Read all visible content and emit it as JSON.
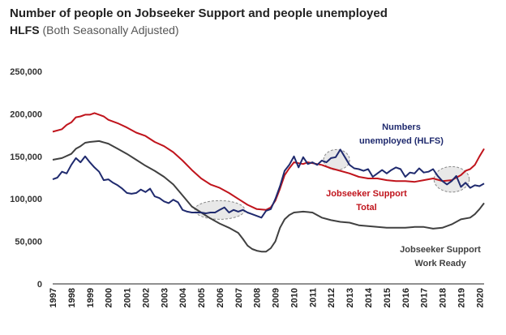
{
  "chart_data": {
    "type": "line",
    "title": "Number of people on Jobseeker Support and people unemployed",
    "subtitle_bold": "HLFS",
    "subtitle_rest": "(Both Seasonally Adjusted)",
    "xlabel": "",
    "ylabel": "",
    "ylim": [
      0,
      250000
    ],
    "xlim": [
      1997,
      2020.25
    ],
    "yticks": [
      "250,000",
      "200,000",
      "150,000",
      "100,000",
      "50,000",
      "0"
    ],
    "ytick_values": [
      250000,
      200000,
      150000,
      100000,
      50000,
      0
    ],
    "xticks": [
      "1997",
      "1998",
      "1999",
      "2000",
      "2001",
      "2002",
      "2003",
      "2004",
      "2005",
      "2006",
      "2007",
      "2008",
      "2009",
      "2010",
      "2011",
      "2012",
      "2013",
      "2014",
      "2015",
      "2016",
      "2017",
      "2018",
      "2019",
      "2020"
    ],
    "grid": false,
    "series": [
      {
        "name": "Jobseeker Support Total",
        "color": "#c0141c",
        "points": [
          [
            1997.0,
            179000
          ],
          [
            1997.5,
            182000
          ],
          [
            1997.75,
            187000
          ],
          [
            1998.0,
            190000
          ],
          [
            1998.25,
            196000
          ],
          [
            1998.5,
            197000
          ],
          [
            1998.75,
            199000
          ],
          [
            1999.0,
            199000
          ],
          [
            1999.25,
            201000
          ],
          [
            1999.5,
            199000
          ],
          [
            1999.75,
            197000
          ],
          [
            2000.0,
            193000
          ],
          [
            2000.5,
            189000
          ],
          [
            2001.0,
            184000
          ],
          [
            2001.5,
            178000
          ],
          [
            2002.0,
            174000
          ],
          [
            2002.5,
            167000
          ],
          [
            2003.0,
            162000
          ],
          [
            2003.5,
            155000
          ],
          [
            2004.0,
            145000
          ],
          [
            2004.5,
            134000
          ],
          [
            2005.0,
            124000
          ],
          [
            2005.5,
            117000
          ],
          [
            2006.0,
            113000
          ],
          [
            2006.5,
            107000
          ],
          [
            2007.0,
            100000
          ],
          [
            2007.5,
            93000
          ],
          [
            2008.0,
            88000
          ],
          [
            2008.5,
            87000
          ],
          [
            2008.75,
            90000
          ],
          [
            2009.0,
            98000
          ],
          [
            2009.25,
            112000
          ],
          [
            2009.5,
            128000
          ],
          [
            2009.75,
            136000
          ],
          [
            2010.0,
            143000
          ],
          [
            2010.25,
            142000
          ],
          [
            2010.5,
            141000
          ],
          [
            2010.75,
            143000
          ],
          [
            2011.0,
            142000
          ],
          [
            2011.5,
            140000
          ],
          [
            2012.0,
            136000
          ],
          [
            2012.5,
            133000
          ],
          [
            2013.0,
            130000
          ],
          [
            2013.5,
            126000
          ],
          [
            2014.0,
            124000
          ],
          [
            2014.5,
            124000
          ],
          [
            2015.0,
            122000
          ],
          [
            2015.5,
            121000
          ],
          [
            2016.0,
            121000
          ],
          [
            2016.5,
            120000
          ],
          [
            2017.0,
            122000
          ],
          [
            2017.5,
            124000
          ],
          [
            2018.0,
            121000
          ],
          [
            2018.5,
            122000
          ],
          [
            2019.0,
            128000
          ],
          [
            2019.25,
            133000
          ],
          [
            2019.5,
            135000
          ],
          [
            2019.75,
            140000
          ],
          [
            2020.0,
            150000
          ],
          [
            2020.25,
            159000
          ]
        ]
      },
      {
        "name": "Jobseeker Support Work Ready",
        "color": "#404040",
        "points": [
          [
            1997.0,
            146000
          ],
          [
            1997.5,
            148000
          ],
          [
            1998.0,
            153000
          ],
          [
            1998.25,
            159000
          ],
          [
            1998.5,
            162000
          ],
          [
            1998.75,
            166000
          ],
          [
            1999.0,
            167000
          ],
          [
            1999.5,
            168000
          ],
          [
            2000.0,
            165000
          ],
          [
            2000.5,
            159000
          ],
          [
            2001.0,
            153000
          ],
          [
            2001.5,
            146000
          ],
          [
            2002.0,
            139000
          ],
          [
            2002.5,
            133000
          ],
          [
            2003.0,
            126000
          ],
          [
            2003.5,
            117000
          ],
          [
            2004.0,
            104000
          ],
          [
            2004.5,
            91000
          ],
          [
            2005.0,
            84000
          ],
          [
            2005.5,
            77000
          ],
          [
            2006.0,
            71000
          ],
          [
            2006.5,
            66000
          ],
          [
            2007.0,
            60000
          ],
          [
            2007.25,
            53000
          ],
          [
            2007.5,
            45000
          ],
          [
            2007.75,
            41000
          ],
          [
            2008.0,
            39000
          ],
          [
            2008.25,
            38000
          ],
          [
            2008.5,
            38000
          ],
          [
            2008.75,
            42000
          ],
          [
            2009.0,
            50000
          ],
          [
            2009.25,
            66000
          ],
          [
            2009.5,
            76000
          ],
          [
            2009.75,
            81000
          ],
          [
            2010.0,
            84000
          ],
          [
            2010.5,
            85000
          ],
          [
            2011.0,
            84000
          ],
          [
            2011.5,
            78000
          ],
          [
            2012.0,
            75000
          ],
          [
            2012.5,
            73000
          ],
          [
            2013.0,
            72000
          ],
          [
            2013.5,
            69000
          ],
          [
            2014.0,
            68000
          ],
          [
            2014.5,
            67000
          ],
          [
            2015.0,
            66000
          ],
          [
            2015.5,
            66000
          ],
          [
            2016.0,
            66000
          ],
          [
            2016.5,
            67000
          ],
          [
            2017.0,
            67000
          ],
          [
            2017.5,
            65000
          ],
          [
            2018.0,
            66000
          ],
          [
            2018.5,
            70000
          ],
          [
            2019.0,
            76000
          ],
          [
            2019.5,
            78000
          ],
          [
            2019.75,
            82000
          ],
          [
            2020.0,
            88000
          ],
          [
            2020.25,
            95000
          ]
        ]
      },
      {
        "name": "Numbers unemployed (HLFS)",
        "color": "#1f2a6e",
        "points": [
          [
            1997.0,
            123000
          ],
          [
            1997.25,
            125000
          ],
          [
            1997.5,
            132000
          ],
          [
            1997.75,
            130000
          ],
          [
            1998.0,
            140000
          ],
          [
            1998.25,
            148000
          ],
          [
            1998.5,
            143000
          ],
          [
            1998.75,
            150000
          ],
          [
            1999.0,
            143000
          ],
          [
            1999.25,
            137000
          ],
          [
            1999.5,
            132000
          ],
          [
            1999.75,
            122000
          ],
          [
            2000.0,
            123000
          ],
          [
            2000.25,
            119000
          ],
          [
            2000.5,
            116000
          ],
          [
            2000.75,
            112000
          ],
          [
            2001.0,
            107000
          ],
          [
            2001.25,
            106000
          ],
          [
            2001.5,
            107000
          ],
          [
            2001.75,
            111000
          ],
          [
            2002.0,
            108000
          ],
          [
            2002.25,
            112000
          ],
          [
            2002.5,
            103000
          ],
          [
            2002.75,
            101000
          ],
          [
            2003.0,
            97000
          ],
          [
            2003.25,
            95000
          ],
          [
            2003.5,
            99000
          ],
          [
            2003.75,
            96000
          ],
          [
            2004.0,
            87000
          ],
          [
            2004.25,
            85000
          ],
          [
            2004.5,
            84000
          ],
          [
            2004.75,
            84000
          ],
          [
            2005.0,
            84000
          ],
          [
            2005.25,
            83000
          ],
          [
            2005.5,
            84000
          ],
          [
            2005.75,
            84000
          ],
          [
            2006.0,
            87000
          ],
          [
            2006.25,
            90000
          ],
          [
            2006.5,
            84000
          ],
          [
            2006.75,
            87000
          ],
          [
            2007.0,
            85000
          ],
          [
            2007.25,
            87000
          ],
          [
            2007.5,
            84000
          ],
          [
            2007.75,
            82000
          ],
          [
            2008.0,
            80000
          ],
          [
            2008.25,
            78000
          ],
          [
            2008.5,
            86000
          ],
          [
            2008.75,
            88000
          ],
          [
            2009.0,
            100000
          ],
          [
            2009.25,
            115000
          ],
          [
            2009.5,
            133000
          ],
          [
            2009.75,
            140000
          ],
          [
            2010.0,
            150000
          ],
          [
            2010.25,
            137000
          ],
          [
            2010.5,
            149000
          ],
          [
            2010.75,
            141000
          ],
          [
            2011.0,
            143000
          ],
          [
            2011.25,
            140000
          ],
          [
            2011.5,
            145000
          ],
          [
            2011.75,
            143000
          ],
          [
            2012.0,
            148000
          ],
          [
            2012.25,
            149000
          ],
          [
            2012.5,
            158000
          ],
          [
            2012.75,
            149000
          ],
          [
            2013.0,
            140000
          ],
          [
            2013.25,
            136000
          ],
          [
            2013.5,
            135000
          ],
          [
            2013.75,
            133000
          ],
          [
            2014.0,
            135000
          ],
          [
            2014.25,
            126000
          ],
          [
            2014.5,
            130000
          ],
          [
            2014.75,
            134000
          ],
          [
            2015.0,
            130000
          ],
          [
            2015.25,
            134000
          ],
          [
            2015.5,
            137000
          ],
          [
            2015.75,
            135000
          ],
          [
            2016.0,
            126000
          ],
          [
            2016.25,
            131000
          ],
          [
            2016.5,
            130000
          ],
          [
            2016.75,
            136000
          ],
          [
            2017.0,
            131000
          ],
          [
            2017.25,
            132000
          ],
          [
            2017.5,
            135000
          ],
          [
            2017.75,
            127000
          ],
          [
            2018.0,
            121000
          ],
          [
            2018.25,
            117000
          ],
          [
            2018.5,
            121000
          ],
          [
            2018.75,
            127000
          ],
          [
            2019.0,
            114000
          ],
          [
            2019.25,
            119000
          ],
          [
            2019.5,
            113000
          ],
          [
            2019.75,
            116000
          ],
          [
            2020.0,
            115000
          ],
          [
            2020.25,
            118000
          ]
        ]
      }
    ],
    "annotations": [
      {
        "label": "Numbers",
        "color": "#1f2a6e"
      },
      {
        "label": "unemployed (HLFS)",
        "color": "#1f2a6e"
      },
      {
        "label": "Jobseeker Support",
        "color": "#c0141c"
      },
      {
        "label": "Total",
        "color": "#c0141c"
      },
      {
        "label": "Jobseeker Support",
        "color": "#404040"
      },
      {
        "label": "Work Ready",
        "color": "#404040"
      }
    ],
    "highlight_regions": [
      {
        "x_center": 2006.0,
        "x_halfwidth": 1.35,
        "y_center": 87000,
        "y_halfwidth": 11000
      },
      {
        "x_center": 2012.3,
        "x_halfwidth": 0.7,
        "y_center": 146000,
        "y_halfwidth": 12000
      },
      {
        "x_center": 2018.5,
        "x_halfwidth": 0.95,
        "y_center": 123000,
        "y_halfwidth": 15000
      }
    ]
  }
}
